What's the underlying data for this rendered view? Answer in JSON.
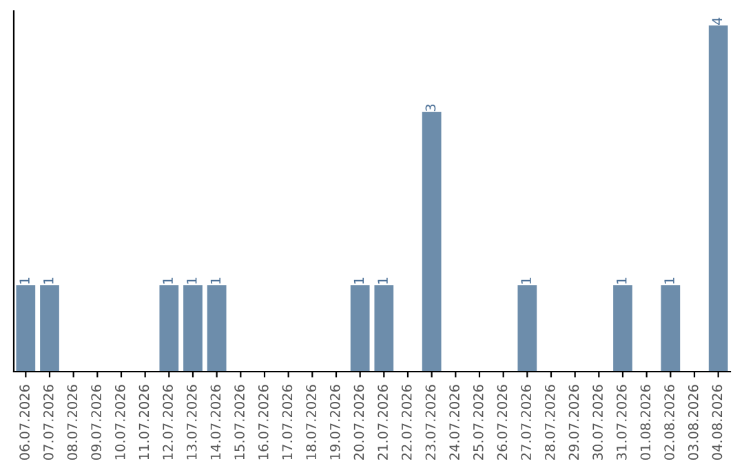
{
  "chart_data": {
    "type": "bar",
    "categories": [
      "06.07.2026",
      "07.07.2026",
      "08.07.2026",
      "09.07.2026",
      "10.07.2026",
      "11.07.2026",
      "12.07.2026",
      "13.07.2026",
      "14.07.2026",
      "15.07.2026",
      "16.07.2026",
      "17.07.2026",
      "18.07.2026",
      "19.07.2026",
      "20.07.2026",
      "21.07.2026",
      "22.07.2026",
      "23.07.2026",
      "24.07.2026",
      "25.07.2026",
      "26.07.2026",
      "27.07.2026",
      "28.07.2026",
      "29.07.2026",
      "30.07.2026",
      "31.07.2026",
      "01.08.2026",
      "02.08.2026",
      "03.08.2026",
      "04.08.2026"
    ],
    "values": [
      1,
      1,
      0,
      0,
      0,
      0,
      1,
      1,
      1,
      0,
      0,
      0,
      0,
      0,
      1,
      1,
      0,
      3,
      0,
      0,
      0,
      1,
      0,
      0,
      0,
      1,
      0,
      1,
      0,
      4
    ],
    "value_labels": [
      "1",
      "1",
      null,
      null,
      null,
      null,
      "1",
      "1",
      "1",
      null,
      null,
      null,
      null,
      null,
      "1",
      "1",
      null,
      "3",
      null,
      null,
      null,
      "1",
      null,
      null,
      null,
      "1",
      null,
      "1",
      null,
      "4"
    ],
    "color": "#6d8dab",
    "tick_labels": "x",
    "grid": false
  }
}
